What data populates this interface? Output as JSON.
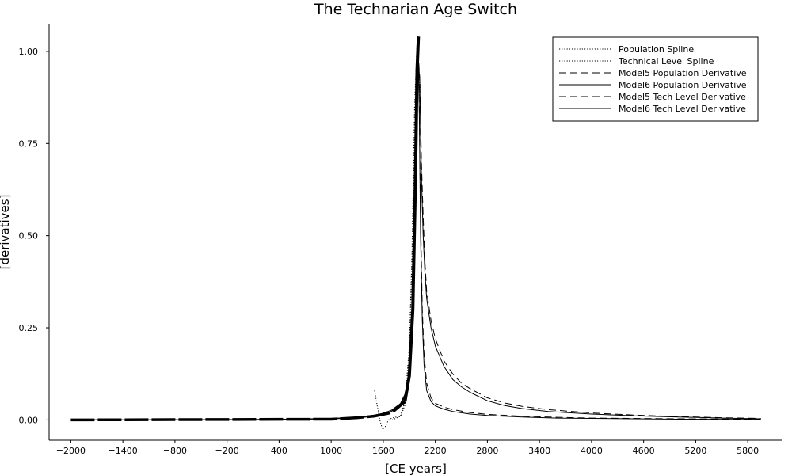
{
  "chart_data": {
    "type": "line",
    "title": "The Technarian Age Switch",
    "xlabel": "[CE years]",
    "ylabel": "[derivatives]",
    "xlim": [
      -2250,
      6200
    ],
    "ylim": [
      -0.055,
      1.075
    ],
    "x_ticks": [
      -2000,
      -1400,
      -800,
      -200,
      400,
      1000,
      1600,
      2200,
      2800,
      3400,
      4000,
      4600,
      5200,
      5800
    ],
    "x_tick_labels": [
      "−2000",
      "−1400",
      "−800",
      "−200",
      "400",
      "1000",
      "1600",
      "2200",
      "2800",
      "3400",
      "4000",
      "4600",
      "5200",
      "5800"
    ],
    "y_ticks": [
      0,
      0.25,
      0.5,
      0.75,
      1.0
    ],
    "y_tick_labels": [
      "0.00",
      "0.25",
      "0.50",
      "0.75",
      "1.00"
    ],
    "grid": false,
    "legend_position": "top-right",
    "series": [
      {
        "name": "Population Spline",
        "style": "dotted",
        "color": "#000000",
        "x": [
          1500,
          1530,
          1560,
          1590,
          1620,
          1660,
          1700,
          1750,
          1800,
          1850,
          1900,
          1930,
          1960,
          1990,
          2010,
          2030
        ],
        "y": [
          0.08,
          0.04,
          0.0,
          -0.025,
          -0.02,
          0.0,
          0.005,
          0.008,
          0.012,
          0.05,
          0.2,
          0.45,
          0.85,
          1.03,
          0.95,
          0.9
        ]
      },
      {
        "name": "Technical Level Spline",
        "style": "dotted",
        "color": "#000000",
        "x": [
          1700,
          1750,
          1800,
          1850,
          1900,
          1940,
          1970,
          1990,
          2010,
          2030
        ],
        "y": [
          0.0,
          0.005,
          0.01,
          0.04,
          0.18,
          0.5,
          0.88,
          1.02,
          0.92,
          0.85
        ]
      },
      {
        "name": "Model5 Population Derivative",
        "style": "dashed",
        "color": "#000000",
        "x": [
          -2000,
          -1000,
          0,
          500,
          1000,
          1200,
          1400,
          1500,
          1600,
          1700,
          1800,
          1850,
          1900,
          1950,
          2000,
          2020,
          2040,
          2060,
          2080,
          2100,
          2150,
          2200,
          2300,
          2400,
          2500,
          2600,
          2800,
          3000,
          3200,
          3500,
          4000,
          4500,
          5000,
          5500,
          5950
        ],
        "y": [
          0.0,
          0.0,
          0.001,
          0.002,
          0.004,
          0.006,
          0.01,
          0.013,
          0.018,
          0.027,
          0.045,
          0.07,
          0.13,
          0.35,
          1.0,
          0.93,
          0.7,
          0.55,
          0.43,
          0.35,
          0.27,
          0.22,
          0.16,
          0.125,
          0.1,
          0.085,
          0.06,
          0.046,
          0.037,
          0.028,
          0.019,
          0.013,
          0.009,
          0.006,
          0.004
        ]
      },
      {
        "name": "Model6 Population Derivative",
        "style": "solid",
        "color": "#000000",
        "x": [
          -2000,
          -1000,
          0,
          500,
          1000,
          1200,
          1400,
          1500,
          1600,
          1700,
          1800,
          1850,
          1900,
          1950,
          2000,
          2020,
          2040,
          2060,
          2080,
          2100,
          2150,
          2200,
          2300,
          2400,
          2500,
          2600,
          2800,
          3000,
          3200,
          3500,
          4000,
          4500,
          5000,
          5500,
          5950
        ],
        "y": [
          0.0,
          0.0,
          0.001,
          0.002,
          0.004,
          0.006,
          0.01,
          0.013,
          0.018,
          0.027,
          0.045,
          0.07,
          0.13,
          0.35,
          1.0,
          0.92,
          0.66,
          0.5,
          0.4,
          0.33,
          0.25,
          0.2,
          0.145,
          0.11,
          0.09,
          0.075,
          0.052,
          0.039,
          0.031,
          0.023,
          0.016,
          0.011,
          0.008,
          0.005,
          0.003
        ]
      },
      {
        "name": "Model5 Tech Level Derivative",
        "style": "dashed",
        "color": "#000000",
        "x": [
          -2000,
          -1000,
          0,
          500,
          1000,
          1200,
          1400,
          1500,
          1600,
          1700,
          1800,
          1850,
          1900,
          1950,
          1985,
          2000,
          2015,
          2030,
          2050,
          2070,
          2100,
          2150,
          2200,
          2300,
          2400,
          2600,
          2800,
          3200,
          3600,
          4000,
          4500,
          5000,
          5950
        ],
        "y": [
          0.0,
          0.0,
          0.0,
          0.001,
          0.003,
          0.005,
          0.008,
          0.011,
          0.015,
          0.024,
          0.04,
          0.065,
          0.12,
          0.4,
          0.95,
          1.03,
          0.85,
          0.55,
          0.3,
          0.18,
          0.1,
          0.06,
          0.045,
          0.035,
          0.028,
          0.02,
          0.015,
          0.01,
          0.007,
          0.005,
          0.004,
          0.003,
          0.002
        ]
      },
      {
        "name": "Model6 Tech Level Derivative",
        "style": "solid",
        "color": "#000000",
        "x": [
          -2000,
          -1000,
          0,
          500,
          1000,
          1200,
          1400,
          1500,
          1600,
          1700,
          1800,
          1850,
          1900,
          1950,
          1985,
          2000,
          2015,
          2030,
          2050,
          2070,
          2100,
          2150,
          2200,
          2300,
          2400,
          2600,
          2800,
          3200,
          3600,
          4000,
          4500,
          5000,
          5950
        ],
        "y": [
          0.0,
          0.0,
          0.0,
          0.001,
          0.003,
          0.005,
          0.008,
          0.011,
          0.015,
          0.024,
          0.04,
          0.065,
          0.12,
          0.4,
          0.95,
          1.04,
          0.83,
          0.5,
          0.27,
          0.15,
          0.08,
          0.05,
          0.038,
          0.029,
          0.023,
          0.016,
          0.012,
          0.008,
          0.005,
          0.004,
          0.003,
          0.002,
          0.001
        ]
      }
    ]
  }
}
